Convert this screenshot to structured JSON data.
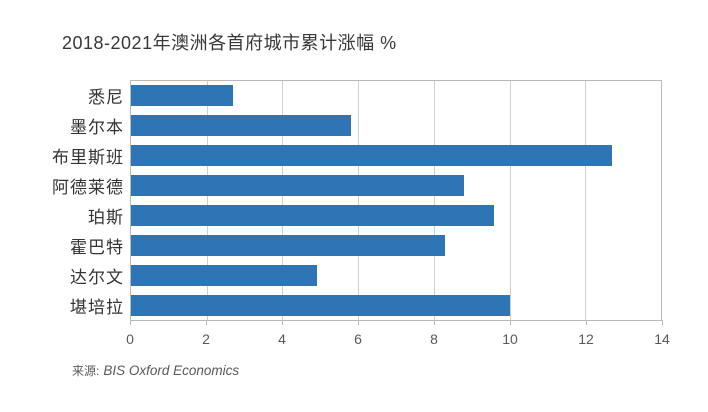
{
  "title": "2018-2021年澳洲各首府城市累计涨幅 %",
  "source": {
    "prefix": "来源:",
    "name": "BIS Oxford Economics"
  },
  "colors": {
    "bar": "#2E75B6",
    "grid": "#cfcfcf",
    "border": "#b9b9b9",
    "tick_text": "#595959",
    "label_text": "#333333",
    "title_text": "#383838"
  },
  "chart_data": {
    "type": "bar",
    "orientation": "horizontal",
    "title": "2018-2021年澳洲各首府城市累计涨幅 %",
    "xlabel": "",
    "ylabel": "",
    "categories": [
      "悉尼",
      "墨尔本",
      "布里斯班",
      "阿德莱德",
      "珀斯",
      "霍巴特",
      "达尔文",
      "堪培拉"
    ],
    "values": [
      2.7,
      5.8,
      12.7,
      8.8,
      9.6,
      8.3,
      4.9,
      10.0
    ],
    "xlim": [
      0,
      14
    ],
    "xticks": [
      0,
      2,
      4,
      6,
      8,
      10,
      12,
      14
    ],
    "grid": true,
    "legend": false,
    "bar_color": "#2E75B6",
    "source_note": "来源: BIS Oxford Economics"
  }
}
